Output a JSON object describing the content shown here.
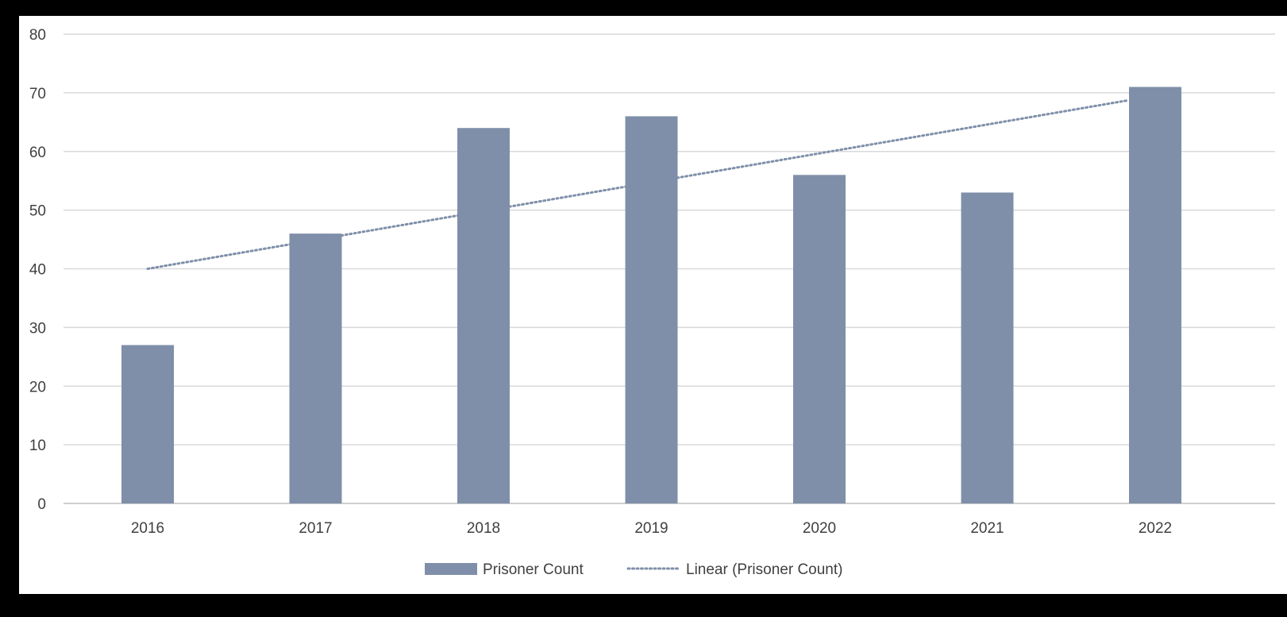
{
  "chart_data": {
    "type": "bar",
    "categories": [
      "2016",
      "2017",
      "2018",
      "2019",
      "2020",
      "2021",
      "2022"
    ],
    "series": [
      {
        "name": "Prisoner Count",
        "values": [
          27,
          46,
          64,
          66,
          56,
          53,
          71
        ],
        "color": "#7f8fa9"
      }
    ],
    "trendline": {
      "name": "Linear (Prisoner Count)",
      "type": "linear",
      "start": 40,
      "end": 69,
      "color": "#7f8fa9",
      "style": "dotted"
    },
    "title": "",
    "xlabel": "",
    "ylabel": "",
    "ylim": [
      0,
      80
    ],
    "yticks": [
      "0",
      "10",
      "20",
      "30",
      "40",
      "50",
      "60",
      "70",
      "80"
    ],
    "grid": true,
    "legend_position": "bottom"
  }
}
